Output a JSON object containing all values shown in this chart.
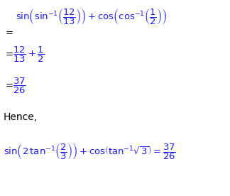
{
  "background_color": "#ffffff",
  "eq_color": "#1a1aff",
  "normal_color": "#000000",
  "figsize": [
    3.24,
    2.76
  ],
  "dpi": 100,
  "fontsize": 9.5
}
